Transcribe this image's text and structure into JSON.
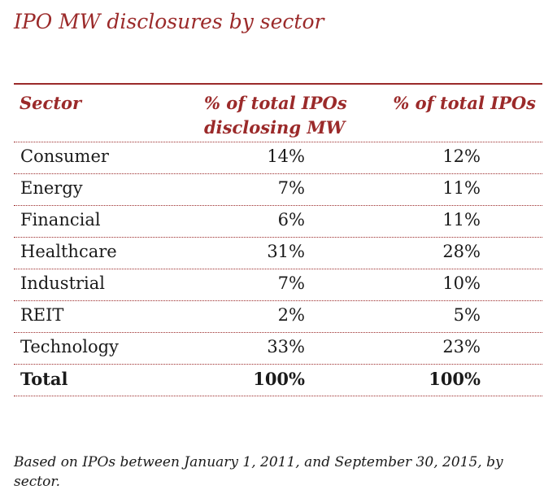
{
  "title": "IPO MW disclosures by sector",
  "table": {
    "headers": {
      "sector": "Sector",
      "disclosing": "% of total IPOs disclosing MW",
      "total": "% of total IPOs"
    },
    "rows": [
      {
        "sector": "Consumer",
        "disclosing": "14%",
        "total": "12%"
      },
      {
        "sector": "Energy",
        "disclosing": "7%",
        "total": "11%"
      },
      {
        "sector": "Financial",
        "disclosing": "6%",
        "total": "11%"
      },
      {
        "sector": "Healthcare",
        "disclosing": "31%",
        "total": "28%"
      },
      {
        "sector": "Industrial",
        "disclosing": "7%",
        "total": "10%"
      },
      {
        "sector": "REIT",
        "disclosing": "2%",
        "total": "5%"
      },
      {
        "sector": "Technology",
        "disclosing": "33%",
        "total": "23%"
      }
    ],
    "total_row": {
      "sector": "Total",
      "disclosing": "100%",
      "total": "100%"
    }
  },
  "footnote": "Based on IPOs between January 1, 2011, and September 30, 2015, by sector.",
  "colors": {
    "accent": "#9b2a2a",
    "text": "#1a1a1a"
  }
}
